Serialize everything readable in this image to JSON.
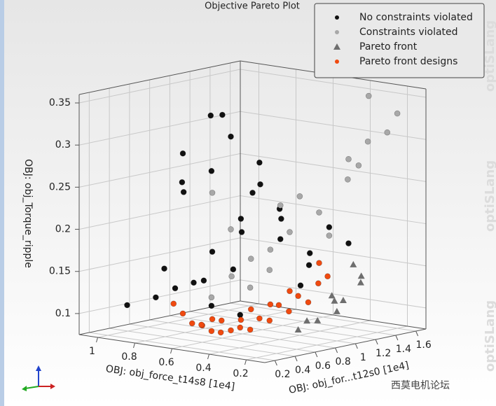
{
  "chart_data": {
    "type": "scatter3d",
    "title": "Objective Pareto Plot",
    "x_label": "OBJ: obj_force_t14s8 [1e4]",
    "y_label": "OBJ: obj_for...t12s0 [1e4]",
    "z_label": "OBJ: obj_Torque_ripple",
    "xlim": [
      0.1,
      1.1
    ],
    "xticks": [
      0.2,
      0.4,
      0.6,
      0.8,
      1
    ],
    "ylim": [
      0.1,
      1.7
    ],
    "yticks": [
      0.2,
      0.4,
      0.6,
      0.8,
      1,
      1.2,
      1.4,
      1.6
    ],
    "zlim": [
      0.075,
      0.36
    ],
    "zticks": [
      0.1,
      0.15,
      0.2,
      0.25,
      0.3,
      0.35
    ],
    "grid": true,
    "legend": "upper right",
    "watermark": "optiSLang",
    "source_mark": "西莫电机论坛",
    "series": [
      {
        "name": "No constraints violated",
        "color": "#111111",
        "marker": "circle",
        "x": [
          0.95,
          0.85,
          0.8,
          0.7,
          0.75,
          0.6,
          0.65,
          0.55,
          0.5,
          0.45,
          0.7,
          0.6,
          0.5,
          0.4,
          0.55,
          0.65,
          0.45,
          0.35,
          0.5,
          0.6,
          0.4,
          0.3,
          0.55,
          0.45,
          0.35,
          0.5,
          0.4,
          0.6,
          0.7,
          0.45
        ],
        "y": [
          0.3,
          0.4,
          0.5,
          0.6,
          0.3,
          0.5,
          0.8,
          0.7,
          0.6,
          0.9,
          0.4,
          0.9,
          1.0,
          1.1,
          0.4,
          0.3,
          0.7,
          1.2,
          0.5,
          0.6,
          0.8,
          1.3,
          0.4,
          0.5,
          1.0,
          0.3,
          0.6,
          0.2,
          0.5,
          1.1
        ],
        "z": [
          0.11,
          0.12,
          0.13,
          0.14,
          0.16,
          0.18,
          0.15,
          0.2,
          0.22,
          0.19,
          0.25,
          0.24,
          0.21,
          0.17,
          0.28,
          0.3,
          0.26,
          0.2,
          0.32,
          0.34,
          0.23,
          0.18,
          0.12,
          0.11,
          0.16,
          0.35,
          0.29,
          0.27,
          0.14,
          0.13
        ]
      },
      {
        "name": "Constraints violated",
        "color": "#a8a8a8",
        "marker": "circle",
        "x": [
          0.2,
          0.25,
          0.2,
          0.3,
          0.25,
          0.35,
          0.3,
          0.4,
          0.45,
          0.5,
          0.55,
          0.45,
          0.4,
          0.5,
          0.35,
          0.3,
          0.6,
          0.55,
          0.4,
          0.45
        ],
        "y": [
          1.5,
          1.4,
          1.6,
          1.3,
          1.2,
          1.1,
          1.5,
          0.9,
          0.8,
          0.7,
          0.6,
          0.9,
          1.0,
          0.5,
          1.2,
          1.4,
          0.5,
          0.4,
          0.7,
          0.6
        ],
        "z": [
          0.31,
          0.3,
          0.33,
          0.28,
          0.26,
          0.22,
          0.35,
          0.2,
          0.18,
          0.17,
          0.15,
          0.23,
          0.24,
          0.21,
          0.19,
          0.27,
          0.25,
          0.13,
          0.16,
          0.14
        ]
      },
      {
        "name": "Pareto front",
        "color": "#6e6e6e",
        "marker": "triangle",
        "x": [
          0.2,
          0.22,
          0.25,
          0.18,
          0.2,
          0.28,
          0.15,
          0.24,
          0.3,
          0.22
        ],
        "y": [
          1.0,
          1.1,
          0.9,
          1.2,
          0.95,
          0.85,
          1.15,
          1.05,
          0.8,
          1.2
        ],
        "z": [
          0.11,
          0.12,
          0.1,
          0.14,
          0.13,
          0.1,
          0.15,
          0.12,
          0.09,
          0.16
        ]
      },
      {
        "name": "Pareto front designs",
        "color": "#f04a10",
        "marker": "circle",
        "x": [
          0.5,
          0.55,
          0.6,
          0.45,
          0.4,
          0.65,
          0.5,
          0.35,
          0.3,
          0.45,
          0.55,
          0.6,
          0.4,
          0.3,
          0.25,
          0.35,
          0.5,
          0.7,
          0.45,
          0.6,
          0.3,
          0.4,
          0.55,
          0.35,
          0.5
        ],
        "y": [
          0.5,
          0.4,
          0.3,
          0.6,
          0.7,
          0.3,
          0.6,
          0.8,
          0.9,
          0.5,
          0.5,
          0.4,
          0.6,
          1.0,
          1.0,
          0.7,
          0.4,
          0.3,
          0.8,
          0.5,
          0.8,
          0.9,
          0.3,
          1.1,
          0.7
        ],
        "z": [
          0.09,
          0.09,
          0.1,
          0.09,
          0.1,
          0.11,
          0.1,
          0.11,
          0.12,
          0.095,
          0.1,
          0.095,
          0.105,
          0.14,
          0.15,
          0.12,
          0.09,
          0.12,
          0.115,
          0.1,
          0.13,
          0.13,
          0.1,
          0.16,
          0.11
        ]
      }
    ]
  }
}
